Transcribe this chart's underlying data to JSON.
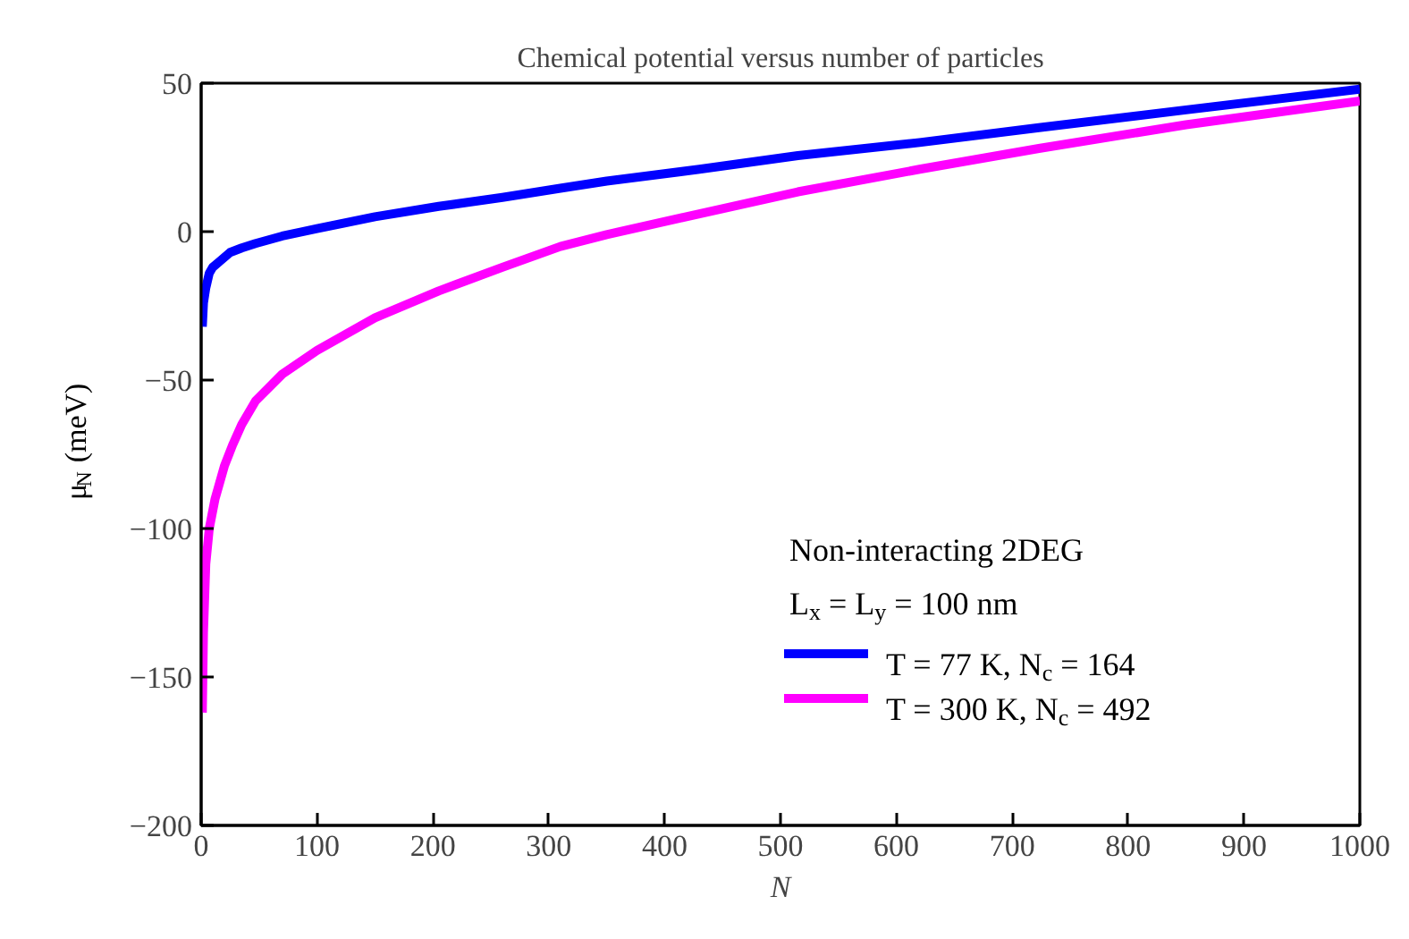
{
  "chart_data": {
    "type": "line",
    "title": "Chemical potential versus number of particles",
    "xlabel": "N",
    "ylabel": "μ$_{N}$ (meV)",
    "legend_title": "Non-interacting 2DEG\nL$_{x}$ = L$_{y}$ = 100 nm",
    "series": [
      {
        "name": "T = 77 K, N$_{c}$ = 164",
        "color": "#0000ff",
        "x": [
          1,
          2,
          4,
          7,
          10,
          16,
          25,
          35,
          47,
          70,
          100,
          150,
          205,
          260,
          310,
          350,
          430,
          515,
          620,
          723,
          850,
          1000
        ],
        "values": [
          -32,
          -24,
          -19,
          -14,
          -12,
          -10,
          -7,
          -5.5,
          -4,
          -1.5,
          1,
          5,
          8.5,
          11.5,
          14.6,
          17,
          21,
          25.6,
          30,
          35,
          41,
          48
        ]
      },
      {
        "name": "T = 300 K, N$_{c}$ = 492",
        "color": "#ff00ff",
        "x": [
          1,
          2,
          4,
          7,
          12,
          20,
          27,
          35,
          47,
          70,
          100,
          150,
          205,
          260,
          310,
          350,
          430,
          515,
          620,
          723,
          850,
          1000
        ],
        "values": [
          -162,
          -135,
          -112,
          -100,
          -90,
          -79,
          -72,
          -65,
          -57,
          -48,
          -40,
          -29,
          -20,
          -12,
          -5,
          -1,
          6,
          13.4,
          21,
          28,
          36,
          44
        ]
      }
    ],
    "xlim": [
      0,
      1000
    ],
    "xticks": [
      0,
      100,
      200,
      300,
      400,
      500,
      600,
      700,
      800,
      900,
      1000
    ],
    "ylim": [
      -200,
      50
    ],
    "yticks": [
      -200,
      -150,
      -100,
      -50,
      0,
      50
    ],
    "legend": "bottom right",
    "grid": false,
    "marker": "none",
    "line_style": "solid"
  }
}
